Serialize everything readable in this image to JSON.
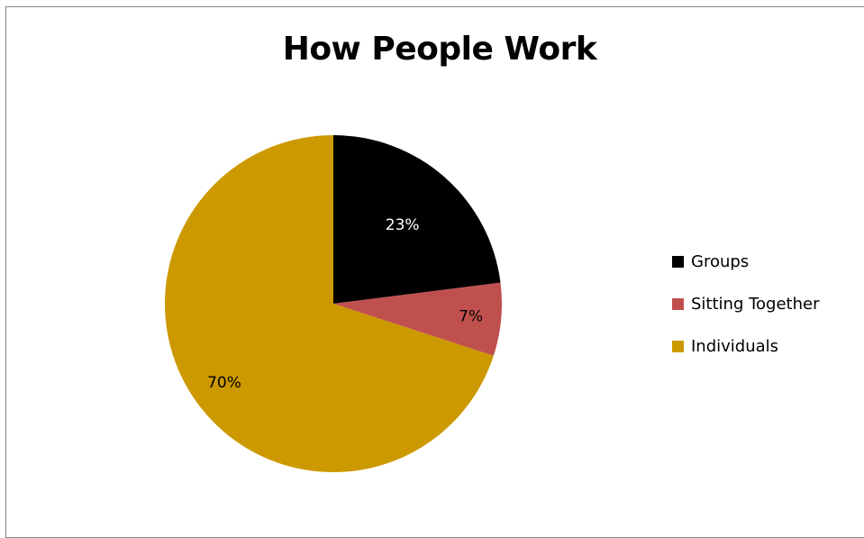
{
  "chart_data": {
    "type": "pie",
    "title": "How People Work",
    "series": [
      {
        "name": "Groups",
        "value": 23,
        "label": "23%",
        "color": "#000000",
        "label_color": "#ffffff"
      },
      {
        "name": "Sitting Together",
        "value": 7,
        "label": "7%",
        "color": "#c0504d",
        "label_color": "#000000"
      },
      {
        "name": "Individuals",
        "value": 70,
        "label": "70%",
        "color": "#cc9900",
        "label_color": "#000000"
      }
    ],
    "legend": "right",
    "start_angle": "12 o'clock",
    "direction": "clockwise"
  }
}
